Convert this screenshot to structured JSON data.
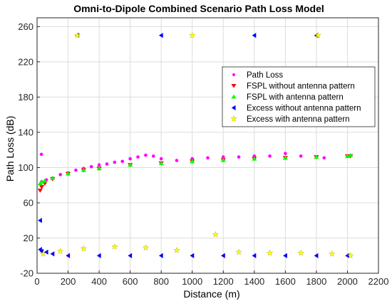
{
  "chart_data": {
    "type": "scatter",
    "title": "Omni-to-Dipole Combined Scenario Path Loss Model",
    "xlabel": "Distance (m)",
    "ylabel": "Path Loss (dB)",
    "xlim": [
      0,
      2200
    ],
    "ylim": [
      -20,
      270
    ],
    "xticks": [
      "0",
      "200",
      "400",
      "600",
      "800",
      "1000",
      "1200",
      "1400",
      "1600",
      "1800",
      "2000",
      "2200"
    ],
    "yticks": [
      "-20",
      "20",
      "60",
      "100",
      "140",
      "180",
      "220",
      "260"
    ],
    "grid": true,
    "legend_position": "top-right",
    "series": [
      {
        "name": "Path Loss",
        "marker": "dot",
        "color": "#ff00ff",
        "points": [
          [
            30,
            84
          ],
          [
            60,
            86
          ],
          [
            100,
            88
          ],
          [
            150,
            92
          ],
          [
            200,
            94
          ],
          [
            250,
            97
          ],
          [
            300,
            99
          ],
          [
            350,
            101
          ],
          [
            400,
            103
          ],
          [
            450,
            104
          ],
          [
            500,
            106
          ],
          [
            550,
            107
          ],
          [
            600,
            110
          ],
          [
            650,
            112
          ],
          [
            700,
            114
          ],
          [
            750,
            113
          ],
          [
            800,
            110
          ],
          [
            900,
            108
          ],
          [
            1000,
            110
          ],
          [
            1100,
            111
          ],
          [
            1200,
            112
          ],
          [
            1300,
            112
          ],
          [
            1400,
            113
          ],
          [
            1500,
            113
          ],
          [
            1600,
            116
          ],
          [
            1700,
            113
          ],
          [
            1800,
            112
          ],
          [
            1850,
            111
          ],
          [
            28,
            115
          ]
        ]
      },
      {
        "name": "FSPL without antenna pattern",
        "marker": "triangle-down",
        "color": "#ff0000",
        "x": [
          20,
          30,
          50,
          100,
          200,
          300,
          400,
          600,
          800,
          1000,
          1200,
          1400,
          1600,
          1800,
          2000,
          2020
        ],
        "values": [
          74,
          78,
          82,
          87,
          93,
          97,
          99,
          103,
          105,
          107,
          108.5,
          110,
          111,
          112,
          113,
          113
        ]
      },
      {
        "name": "FSPL with antenna pattern",
        "marker": "triangle-up",
        "color": "#00ff00",
        "x": [
          20,
          30,
          50,
          100,
          200,
          300,
          400,
          600,
          800,
          1000,
          1200,
          1400,
          1600,
          1800,
          2000,
          2020
        ],
        "values": [
          82,
          84,
          85,
          88,
          93,
          97,
          99,
          103,
          105,
          107,
          108.5,
          110,
          111,
          112,
          113,
          114
        ]
      },
      {
        "name": "Excess without antenna pattern",
        "marker": "triangle-left",
        "color": "#0000ff",
        "points": [
          [
            20,
            40
          ],
          [
            20,
            7
          ],
          [
            30,
            5
          ],
          [
            60,
            4
          ],
          [
            100,
            2
          ],
          [
            200,
            0
          ],
          [
            400,
            0
          ],
          [
            600,
            0
          ],
          [
            800,
            0
          ],
          [
            1000,
            0
          ],
          [
            1200,
            0
          ],
          [
            1400,
            0
          ],
          [
            1600,
            0
          ],
          [
            1800,
            0
          ],
          [
            2000,
            0
          ],
          [
            260,
            250
          ],
          [
            800,
            250
          ],
          [
            1400,
            250
          ],
          [
            1800,
            250
          ]
        ]
      },
      {
        "name": "Excess with antenna pattern",
        "marker": "star",
        "color": "#ffff00",
        "points": [
          [
            40,
            2
          ],
          [
            150,
            5
          ],
          [
            300,
            8
          ],
          [
            500,
            10
          ],
          [
            700,
            9
          ],
          [
            900,
            6
          ],
          [
            1150,
            24
          ],
          [
            1300,
            4
          ],
          [
            1500,
            3
          ],
          [
            1700,
            3
          ],
          [
            1900,
            2
          ],
          [
            2020,
            0
          ],
          [
            260,
            250
          ],
          [
            1000,
            250
          ],
          [
            1810,
            250
          ]
        ]
      }
    ]
  }
}
